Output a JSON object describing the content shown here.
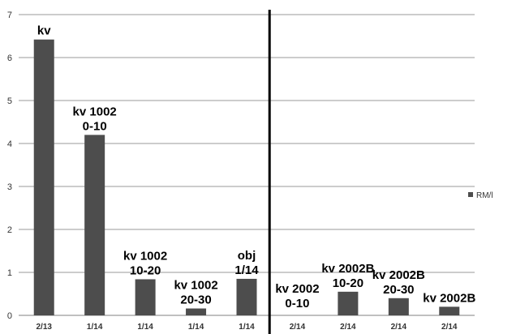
{
  "chart_data": {
    "type": "bar",
    "categories": [
      "2/13",
      "1/14",
      "1/14",
      "1/14",
      "1/14",
      "2/14",
      "2/14",
      "2/14",
      "2/14"
    ],
    "series": [
      {
        "name": "RM/l",
        "values": [
          6.42,
          4.2,
          0.84,
          0.16,
          0.85,
          0,
          0.55,
          0.4,
          0.2
        ],
        "bar_labels": [
          [
            "kv"
          ],
          [
            "kv 1002",
            "0-10"
          ],
          [
            "kv 1002",
            "10-20"
          ],
          [
            "kv 1002",
            "20-30"
          ],
          [
            "obj",
            "1/14"
          ],
          [
            "kv 2002",
            "0-10"
          ],
          [
            "kv 2002B",
            "10-20"
          ],
          [
            "kv 2002B",
            "20-30"
          ],
          [
            "kv 2002B"
          ]
        ]
      }
    ],
    "title": "",
    "xlabel": "",
    "ylabel": "",
    "ylim": [
      0,
      7
    ],
    "yticks": [
      "0",
      "1",
      "2",
      "3",
      "4",
      "5",
      "6",
      "7"
    ],
    "grid": true,
    "legend": "right",
    "divider_after_category_index": 4,
    "bar_color": "#4d4d4d"
  }
}
